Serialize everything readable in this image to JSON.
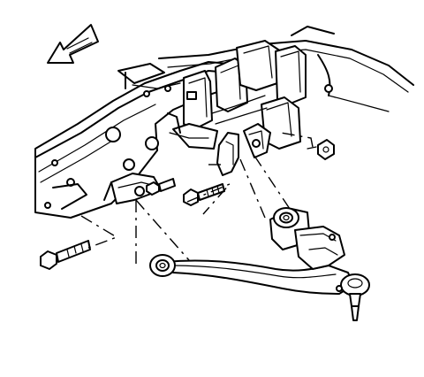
{
  "diagram": {
    "view": "lower-control-arm-installation",
    "direction_arrow": "forward-arrow",
    "parts": [
      "frame-rail",
      "spring-hangers",
      "front-control-arm-bracket",
      "rear-control-arm-bracket",
      "lower-control-arm",
      "front-bushing",
      "rear-bushing",
      "ball-joint",
      "front-pivot-bolt",
      "rear-pivot-bolt",
      "nut"
    ]
  }
}
